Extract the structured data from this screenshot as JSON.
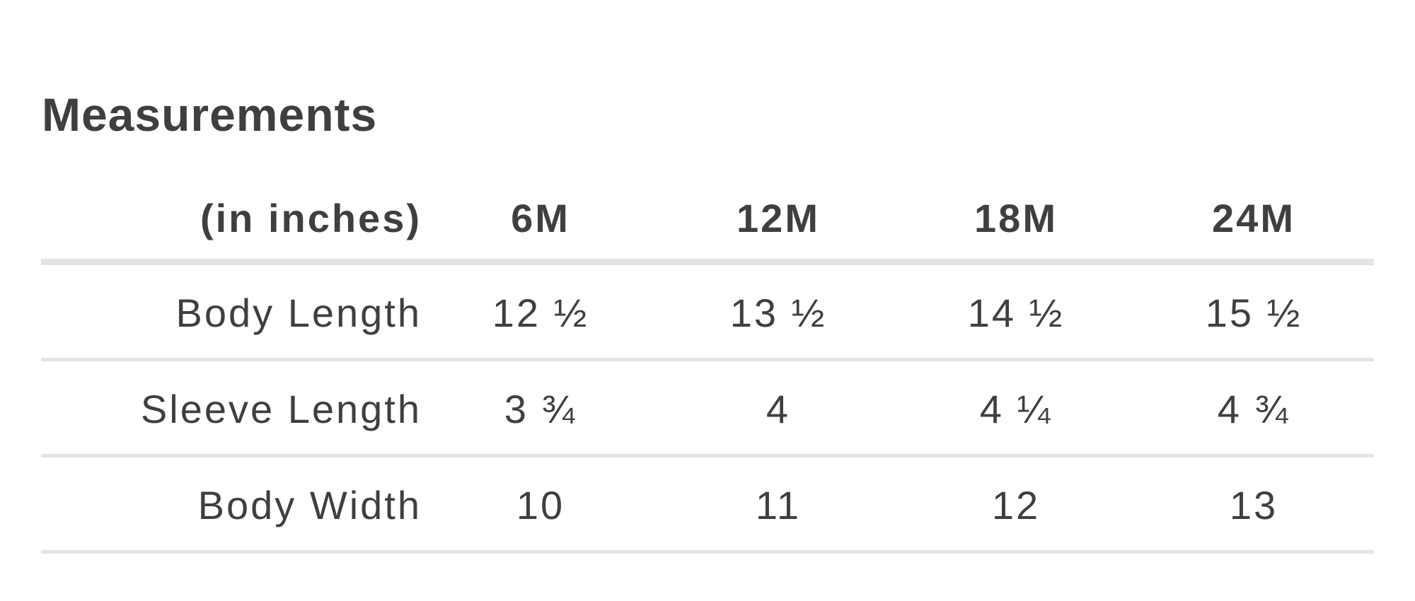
{
  "title": "Measurements",
  "table": {
    "unit_label": "(in inches)",
    "sizes": [
      "6M",
      "12M",
      "18M",
      "24M"
    ],
    "rows": [
      {
        "label": "Body Length",
        "values": [
          "12 ½",
          "13 ½",
          "14 ½",
          "15 ½"
        ]
      },
      {
        "label": "Sleeve Length",
        "values": [
          "3 ¾",
          "4",
          "4 ¼",
          "4 ¾"
        ]
      },
      {
        "label": "Body Width",
        "values": [
          "10",
          "11",
          "12",
          "13"
        ]
      }
    ]
  },
  "colors": {
    "text": "#3f3f3f",
    "divider": "#e3e3e8",
    "background": "#ffffff"
  }
}
